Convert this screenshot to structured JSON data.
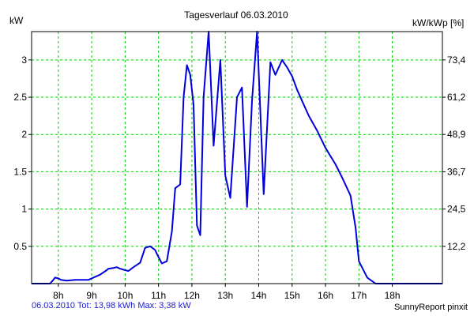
{
  "chart_data": {
    "type": "line",
    "title": "Tagesverlauf 06.03.2010",
    "y_left_label": "kW",
    "y_right_label": "kW/kWp [%]",
    "x_ticks": [
      "8h",
      "9h",
      "10h",
      "11h",
      "12h",
      "13h",
      "14h",
      "15h",
      "16h",
      "17h",
      "18h"
    ],
    "x_tick_hours": [
      8,
      9,
      10,
      11,
      12,
      13,
      14,
      15,
      16,
      17,
      18
    ],
    "x_range": [
      7.2,
      19.5
    ],
    "y_left_ticks": [
      "0.5",
      "1",
      "1.5",
      "2",
      "2.5",
      "3"
    ],
    "y_left_tick_values": [
      0.5,
      1,
      1.5,
      2,
      2.5,
      3
    ],
    "y_right_ticks": [
      "12,2",
      "24,5",
      "36,7",
      "48,9",
      "61,2",
      "73,4"
    ],
    "ylim": [
      0,
      3.38
    ],
    "grid": true,
    "line_color": "#0000dd",
    "grid_color": "#00cc00",
    "series": [
      {
        "x": [
          7.2,
          7.75,
          7.85,
          7.9,
          8.0,
          8.08,
          8.25,
          8.5,
          8.75,
          8.9,
          9.0,
          9.15,
          9.25,
          9.45,
          9.5,
          9.65,
          9.75,
          9.85,
          10.0,
          10.1,
          10.25,
          10.45,
          10.6,
          10.75,
          10.9,
          10.95,
          11.1,
          11.25,
          11.4,
          11.5,
          11.65,
          11.75,
          11.85,
          11.95,
          12.05,
          12.15,
          12.25,
          12.35,
          12.5,
          12.65,
          12.85,
          13.0,
          13.15,
          13.35,
          13.5,
          13.65,
          13.8,
          13.95,
          14.15,
          14.35,
          14.5,
          14.7,
          14.85,
          15.0,
          15.15,
          15.3,
          15.5,
          15.75,
          16.0,
          16.3,
          16.5,
          16.75,
          16.9,
          17.0,
          17.25,
          17.5,
          17.75,
          17.9,
          18.0,
          18.15,
          18.3,
          18.5,
          19.5
        ],
        "y": [
          0.0,
          0.0,
          0.05,
          0.08,
          0.07,
          0.05,
          0.04,
          0.05,
          0.05,
          0.05,
          0.07,
          0.1,
          0.12,
          0.18,
          0.2,
          0.21,
          0.22,
          0.2,
          0.18,
          0.17,
          0.22,
          0.28,
          0.48,
          0.5,
          0.45,
          0.4,
          0.27,
          0.3,
          0.7,
          1.28,
          1.33,
          2.5,
          2.93,
          2.8,
          2.4,
          0.78,
          0.65,
          2.5,
          3.38,
          1.85,
          3.0,
          1.45,
          1.15,
          2.5,
          2.63,
          1.03,
          2.45,
          3.38,
          1.2,
          2.97,
          2.8,
          3.0,
          2.9,
          2.78,
          2.6,
          2.45,
          2.25,
          2.05,
          1.82,
          1.6,
          1.42,
          1.18,
          0.75,
          0.3,
          0.08,
          0.0,
          0.0,
          0.0,
          0.0,
          0.0,
          0.0,
          0.0,
          0.0
        ]
      }
    ]
  },
  "footer": {
    "left": "06.03.2010 Tot: 13,98 kWh Max: 3,38 kW",
    "right": "SunnyReport pinxit"
  }
}
